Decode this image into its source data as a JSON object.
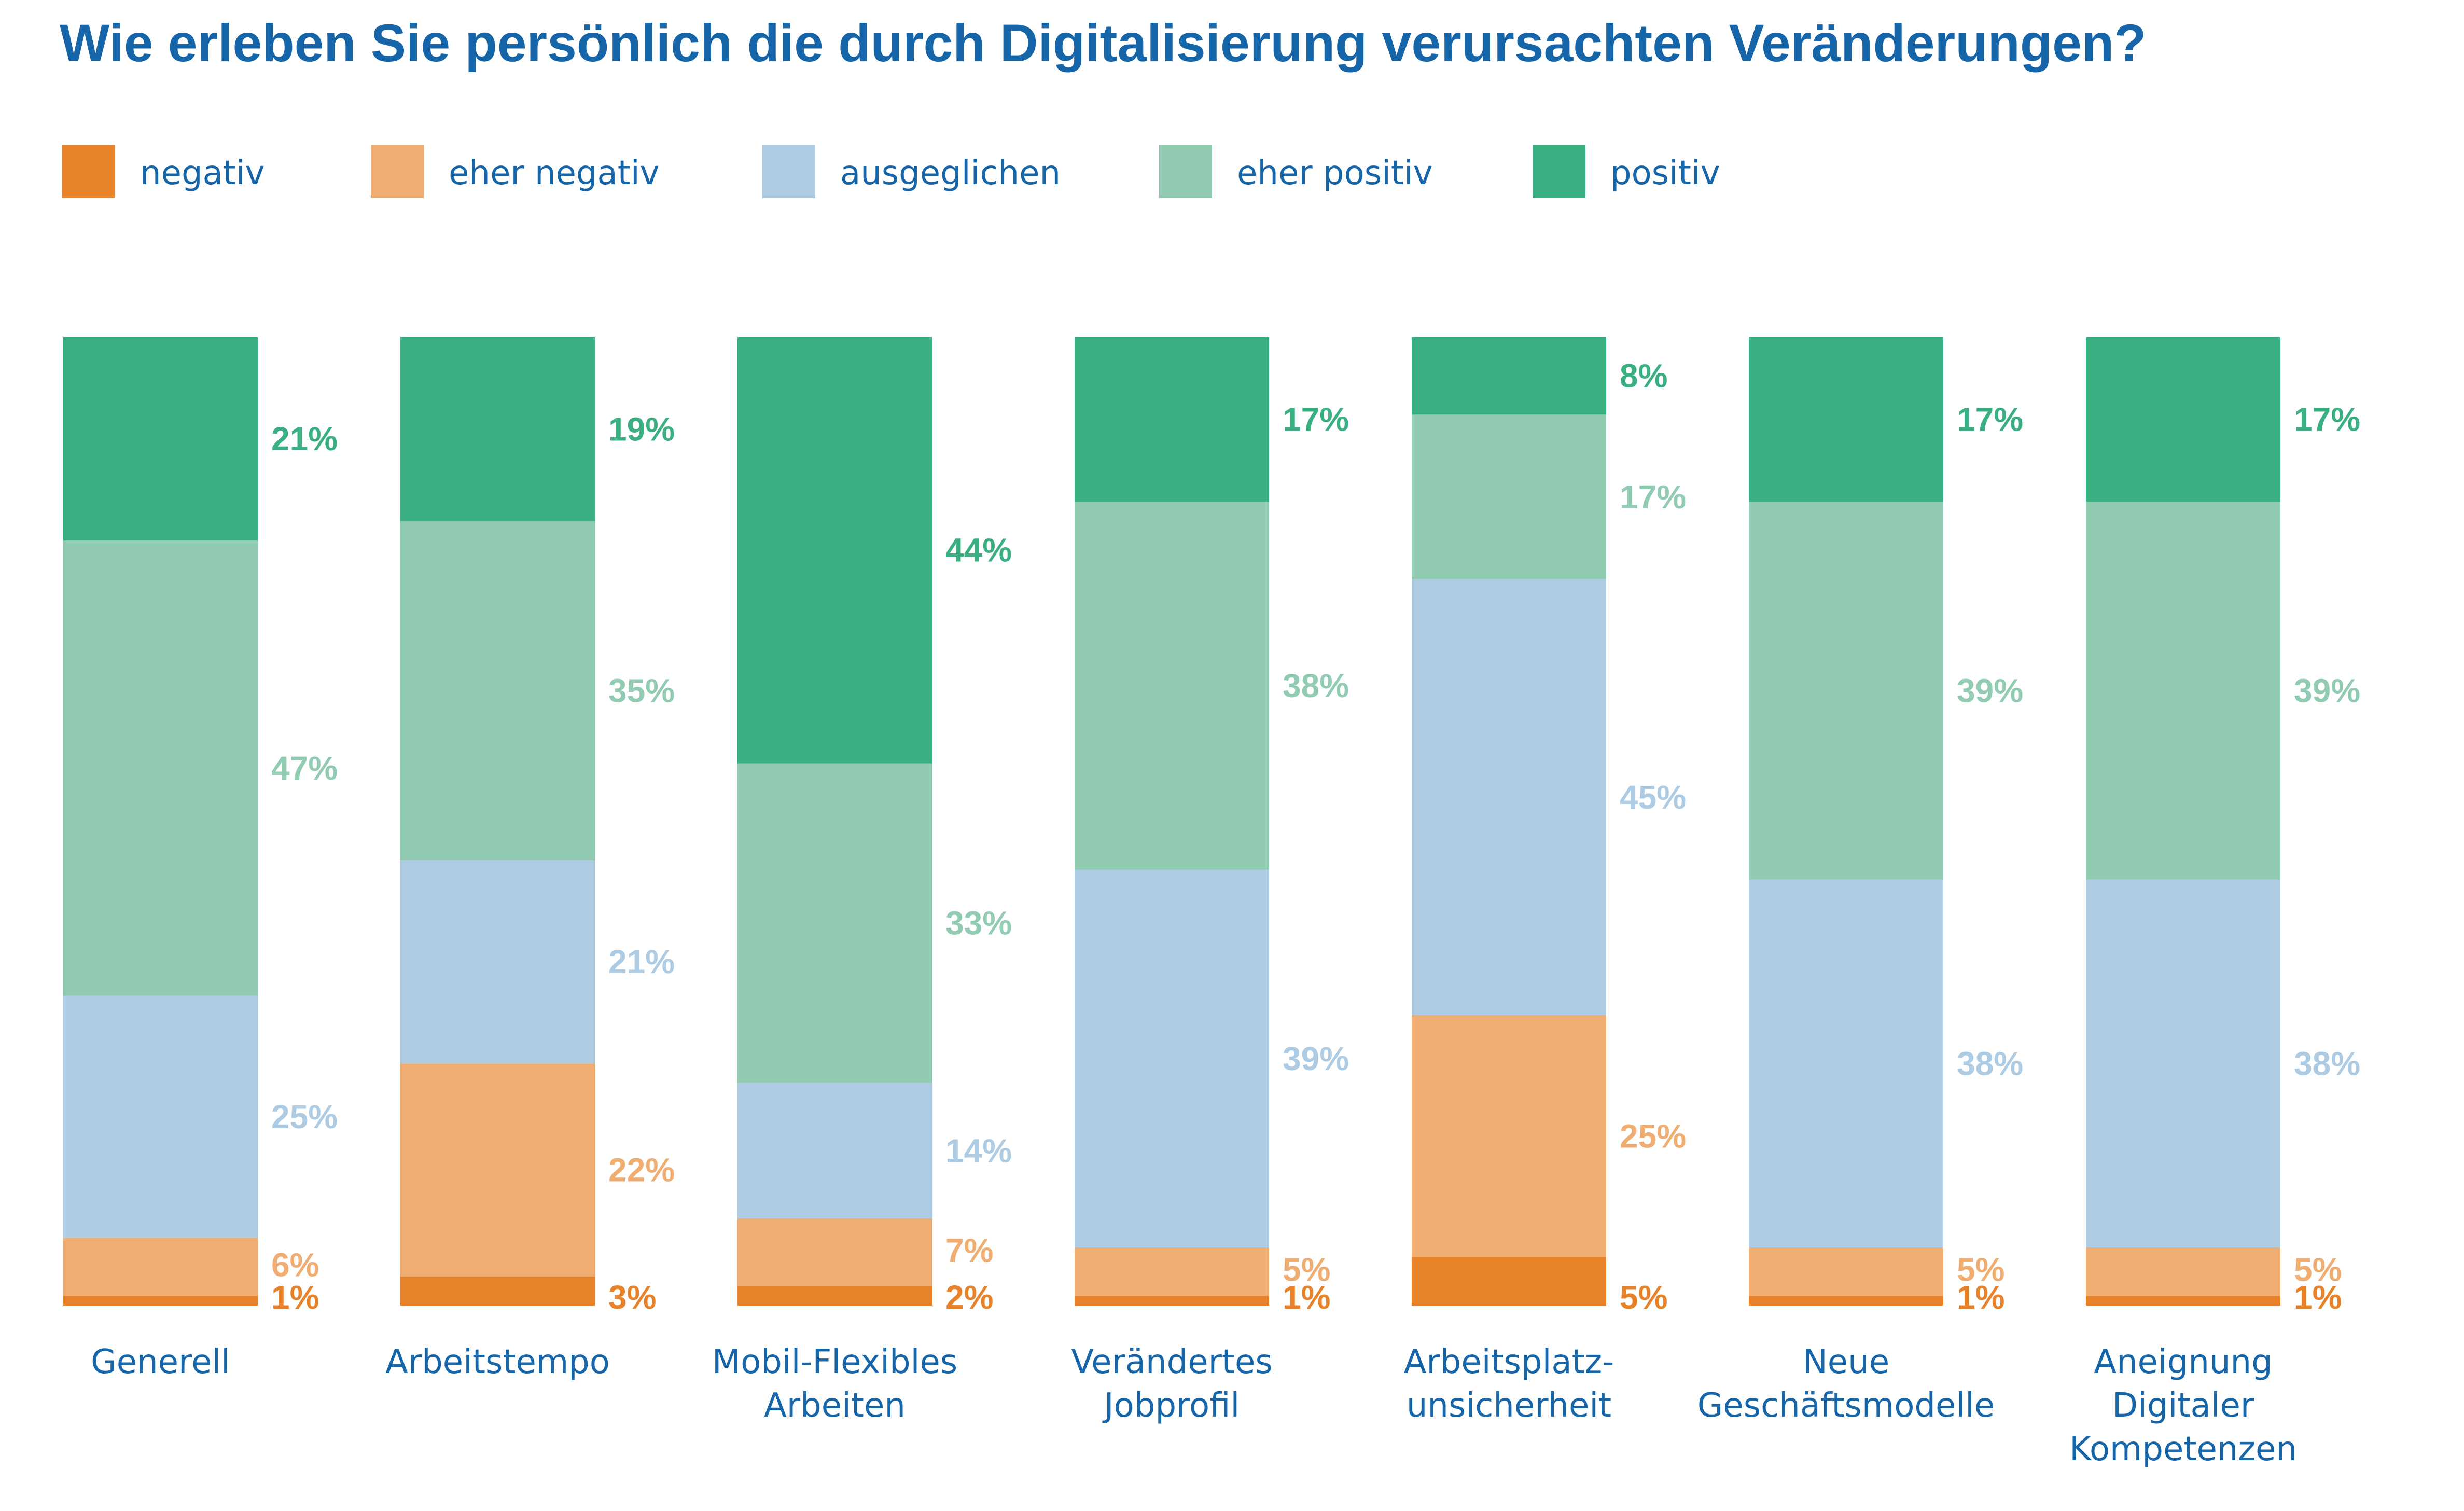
{
  "colors": {
    "title": "#1565a8",
    "text": "#1565a8",
    "negativ": "#e8822a",
    "eher_negativ": "#efad72",
    "ausgeglichen": "#adcbe2",
    "eher_positiv": "#90cbb2",
    "positiv": "#3aaf82"
  },
  "chart_data": {
    "type": "bar",
    "stacked": true,
    "title": "Wie erleben Sie persönlich die durch Digitalisierung verursachten Veränderungen?",
    "legend_position": "top-left",
    "categories": [
      [
        "Generell"
      ],
      [
        "Arbeitstempo"
      ],
      [
        "Mobil-Flexibles",
        "Arbeiten"
      ],
      [
        "Verändertes",
        "Jobprofil"
      ],
      [
        "Arbeitsplatz-",
        "unsicherheit"
      ],
      [
        "Neue",
        "Geschäftsmodelle"
      ],
      [
        "Aneignung",
        "Digitaler",
        "Kompetenzen"
      ]
    ],
    "series": [
      {
        "key": "negativ",
        "name": "negativ",
        "values": [
          1,
          3,
          2,
          1,
          5,
          1,
          1
        ],
        "labels": [
          "1%",
          "3%",
          "2%",
          "1%",
          "5%",
          "1%",
          "1%"
        ]
      },
      {
        "key": "eher_negativ",
        "name": "eher negativ",
        "values": [
          6,
          22,
          7,
          5,
          25,
          5,
          5
        ],
        "labels": [
          "6%",
          "22%",
          "7%",
          "5%",
          "25%",
          "5%",
          "5%"
        ]
      },
      {
        "key": "ausgeglichen",
        "name": "ausgeglichen",
        "values": [
          25,
          21,
          14,
          39,
          45,
          38,
          38
        ],
        "labels": [
          "25%",
          "21%",
          "14%",
          "39%",
          "45%",
          "38%",
          "38%"
        ]
      },
      {
        "key": "eher_positiv",
        "name": "eher positiv",
        "values": [
          47,
          35,
          33,
          38,
          17,
          39,
          39
        ],
        "labels": [
          "47%",
          "35%",
          "33%",
          "38%",
          "17%",
          "39%",
          "39%"
        ]
      },
      {
        "key": "positiv",
        "name": "positiv",
        "values": [
          21,
          19,
          44,
          17,
          8,
          17,
          17
        ],
        "labels": [
          "21%",
          "19%",
          "44%",
          "17%",
          "8%",
          "17%",
          "17%"
        ]
      }
    ]
  }
}
